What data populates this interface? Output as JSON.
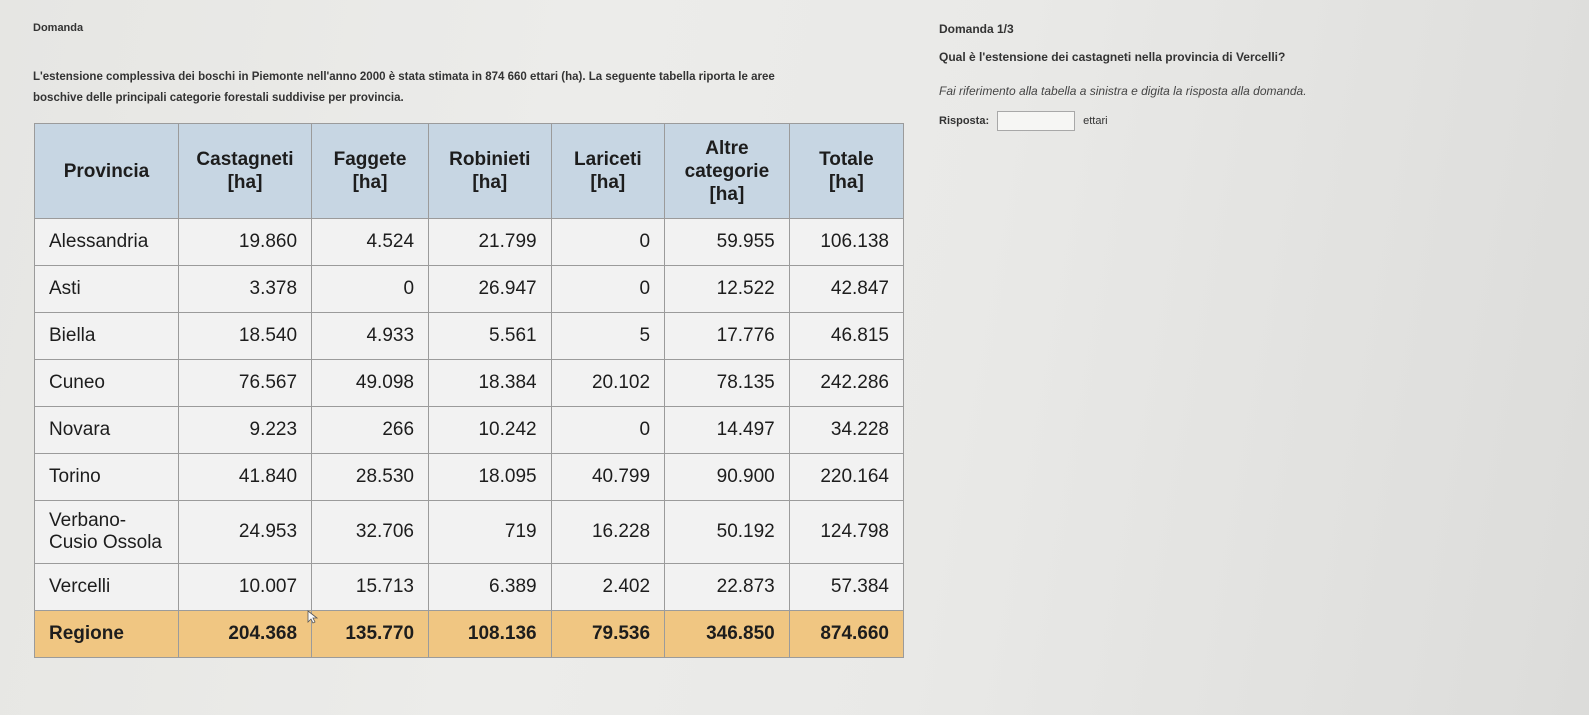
{
  "header": {
    "left": "Domanda",
    "right": "Domanda 1/3"
  },
  "intro": {
    "line1": "L'estensione complessiva dei boschi in Piemonte nell'anno 2000 è stata stimata in 874 660 ettari (ha). La seguente tabella riporta le aree",
    "line2": "boschive delle principali categorie forestali suddivise per provincia."
  },
  "question": {
    "text": "Qual è l'estensione dei castagneti nella provincia di Vercelli?",
    "instruction": "Fai riferimento alla tabella a sinistra e digita la risposta alla domanda.",
    "answer_label": "Risposta:",
    "answer_value": "",
    "answer_unit": "ettari"
  },
  "table": {
    "headers": [
      "Provincia",
      "Castagneti [ha]",
      "Faggete [ha]",
      "Robinieti [ha]",
      "Lariceti [ha]",
      "Altre categorie [ha]",
      "Totale [ha]"
    ],
    "rows": [
      [
        "Alessandria",
        "19.860",
        "4.524",
        "21.799",
        "0",
        "59.955",
        "106.138"
      ],
      [
        "Asti",
        "3.378",
        "0",
        "26.947",
        "0",
        "12.522",
        "42.847"
      ],
      [
        "Biella",
        "18.540",
        "4.933",
        "5.561",
        "5",
        "17.776",
        "46.815"
      ],
      [
        "Cuneo",
        "76.567",
        "49.098",
        "18.384",
        "20.102",
        "78.135",
        "242.286"
      ],
      [
        "Novara",
        "9.223",
        "266",
        "10.242",
        "0",
        "14.497",
        "34.228"
      ],
      [
        "Torino",
        "41.840",
        "28.530",
        "18.095",
        "40.799",
        "90.900",
        "220.164"
      ],
      [
        "Verbano-Cusio Ossola",
        "24.953",
        "32.706",
        "719",
        "16.228",
        "50.192",
        "124.798"
      ],
      [
        "Vercelli",
        "10.007",
        "15.713",
        "6.389",
        "2.402",
        "22.873",
        "57.384"
      ]
    ],
    "total": [
      "Regione",
      "204.368",
      "135.770",
      "108.136",
      "79.536",
      "346.850",
      "874.660"
    ]
  }
}
